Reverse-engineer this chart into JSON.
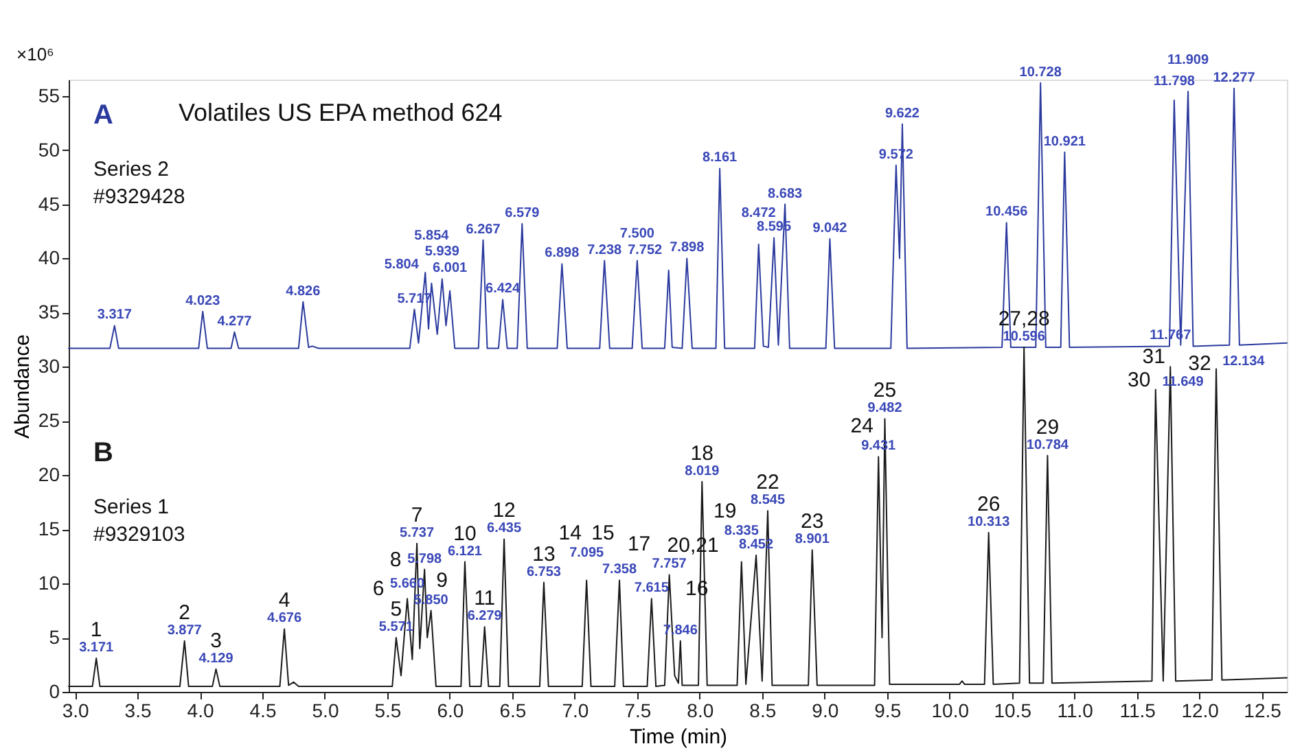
{
  "chart_data": {
    "type": "line",
    "title": "Volatiles US EPA method 624",
    "xlabel": "Time (min)",
    "ylabel": "Abundance",
    "xlim": [
      2.95,
      12.7
    ],
    "ylim": [
      0,
      56.5
    ],
    "xticks": [
      {
        "value": 3,
        "label": "3.0"
      },
      3.5,
      {
        "value": 4,
        "label": "4.0"
      },
      4.5,
      {
        "value": 5,
        "label": "5.0"
      },
      5.5,
      {
        "value": 6,
        "label": "6.0"
      },
      6.5,
      {
        "value": 7,
        "label": "7.0"
      },
      7.5,
      {
        "value": 8,
        "label": "8.0"
      },
      8.5,
      {
        "value": 9,
        "label": "9.0"
      },
      9.5,
      {
        "value": 10,
        "label": "10.0"
      },
      10.5,
      {
        "value": 11,
        "label": "11.0"
      },
      11.5,
      {
        "value": 12,
        "label": "12.0"
      },
      12.5
    ],
    "yticks": [
      0,
      5,
      10,
      15,
      20,
      25,
      30,
      35,
      40,
      45,
      50,
      55
    ],
    "grid": false,
    "legend": false,
    "marker": "none",
    "line_style": "solid",
    "series": [
      {
        "name": "A",
        "color": "#2b3a9e",
        "x": [
          2.95,
          3.28,
          3.317,
          3.35,
          3.99,
          4.023,
          4.06,
          4.25,
          4.277,
          4.31,
          4.79,
          4.826,
          4.87,
          4.9,
          4.95,
          5.68,
          5.717,
          5.75,
          5.804,
          5.83,
          5.854,
          5.9,
          5.939,
          5.97,
          6.001,
          6.04,
          6.23,
          6.267,
          6.3,
          6.39,
          6.424,
          6.46,
          6.54,
          6.579,
          6.62,
          6.86,
          6.898,
          6.94,
          7.2,
          7.238,
          7.28,
          7.46,
          7.5,
          7.54,
          7.72,
          7.752,
          7.78,
          7.86,
          7.898,
          7.94,
          8.13,
          8.161,
          8.2,
          8.44,
          8.472,
          8.51,
          8.55,
          8.595,
          8.63,
          8.683,
          8.72,
          9.01,
          9.042,
          9.08,
          9.53,
          9.572,
          9.6,
          9.622,
          9.66,
          10.42,
          10.456,
          10.49,
          10.69,
          10.728,
          10.77,
          10.89,
          10.921,
          10.96,
          11.76,
          11.798,
          11.85,
          11.909,
          11.95,
          12.24,
          12.277,
          12.32,
          12.7
        ],
        "values": [
          31.7,
          31.7,
          33.8,
          31.7,
          31.7,
          35.1,
          31.7,
          31.7,
          33.2,
          31.7,
          31.7,
          36.0,
          31.8,
          31.9,
          31.7,
          31.7,
          35.3,
          32.2,
          38.7,
          33.5,
          37.7,
          33.0,
          38.1,
          33.8,
          37.0,
          31.7,
          31.7,
          41.7,
          31.7,
          31.7,
          36.2,
          31.7,
          31.7,
          43.2,
          31.7,
          31.7,
          39.5,
          31.7,
          31.7,
          39.8,
          31.7,
          31.7,
          39.8,
          31.7,
          31.7,
          38.9,
          31.8,
          31.7,
          40.0,
          31.7,
          31.7,
          48.3,
          31.7,
          31.7,
          41.3,
          31.9,
          31.8,
          41.9,
          32.0,
          45.0,
          31.7,
          31.7,
          41.8,
          31.7,
          31.7,
          48.6,
          40.0,
          52.4,
          31.7,
          31.8,
          43.3,
          31.8,
          31.8,
          56.2,
          31.8,
          31.8,
          49.8,
          31.8,
          31.9,
          54.6,
          32.0,
          55.4,
          31.9,
          32.0,
          55.7,
          32.0,
          32.2
        ]
      },
      {
        "name": "B",
        "color": "#1a1a1a",
        "x": [
          2.95,
          3.14,
          3.171,
          3.2,
          3.84,
          3.877,
          3.91,
          4.1,
          4.129,
          4.16,
          4.64,
          4.676,
          4.71,
          4.75,
          4.79,
          5.54,
          5.571,
          5.61,
          5.66,
          5.7,
          5.737,
          5.76,
          5.798,
          5.82,
          5.85,
          5.89,
          6.09,
          6.121,
          6.16,
          6.25,
          6.279,
          6.31,
          6.4,
          6.435,
          6.47,
          6.72,
          6.753,
          6.79,
          7.06,
          7.095,
          7.13,
          7.32,
          7.358,
          7.39,
          7.58,
          7.615,
          7.65,
          7.72,
          7.757,
          7.8,
          7.83,
          7.846,
          7.86,
          7.99,
          8.019,
          8.06,
          8.3,
          8.335,
          8.37,
          8.452,
          8.5,
          8.545,
          8.58,
          8.87,
          8.901,
          8.94,
          9.4,
          9.431,
          9.46,
          9.482,
          9.52,
          10.08,
          10.1,
          10.12,
          10.28,
          10.313,
          10.35,
          10.56,
          10.596,
          10.64,
          10.75,
          10.784,
          10.82,
          11.62,
          11.649,
          11.71,
          11.767,
          11.81,
          12.1,
          12.134,
          12.18,
          12.7
        ],
        "values": [
          0.5,
          0.5,
          3.1,
          0.5,
          0.5,
          4.7,
          0.5,
          0.5,
          2.1,
          0.5,
          0.5,
          5.8,
          0.6,
          0.9,
          0.5,
          0.5,
          5.0,
          1.5,
          8.6,
          3.0,
          13.7,
          4.0,
          11.3,
          5.0,
          7.5,
          0.5,
          0.5,
          12.0,
          0.5,
          0.5,
          6.0,
          0.5,
          0.5,
          14.1,
          0.5,
          0.5,
          10.1,
          0.5,
          0.5,
          10.3,
          0.5,
          0.5,
          10.3,
          0.5,
          0.5,
          8.6,
          0.5,
          0.6,
          10.8,
          1.5,
          0.8,
          4.7,
          0.6,
          0.6,
          19.4,
          0.6,
          0.6,
          12.0,
          0.7,
          12.6,
          1.0,
          16.7,
          0.6,
          0.6,
          13.1,
          0.6,
          0.6,
          21.7,
          5.0,
          25.2,
          0.7,
          0.7,
          1.0,
          0.7,
          0.7,
          14.7,
          0.7,
          0.8,
          31.8,
          0.8,
          0.8,
          21.8,
          0.8,
          1.0,
          27.9,
          1.0,
          30.0,
          1.0,
          1.1,
          29.8,
          1.1,
          1.3
        ]
      }
    ],
    "annotations": [
      "×10⁶",
      "Series 2",
      "#9329428",
      "Series 1",
      "#9329103",
      {
        "text": "3.317",
        "x": 3.317,
        "y": 33.8
      },
      {
        "text": "4.023",
        "x": 4.023,
        "y": 35.1
      },
      {
        "text": "4.277",
        "x": 4.277,
        "y": 33.2
      },
      {
        "text": "4.826",
        "x": 4.826,
        "y": 36.0
      },
      {
        "text": "5.717",
        "x": 5.717,
        "y": 35.3
      },
      {
        "text": "5.804",
        "x": 5.804,
        "y": 38.7
      },
      {
        "text": "5.854",
        "x": 5.854,
        "y": 37.7
      },
      {
        "text": "5.939",
        "x": 5.939,
        "y": 38.1
      },
      {
        "text": "6.001",
        "x": 6.001,
        "y": 37.0
      },
      {
        "text": "6.267",
        "x": 6.267,
        "y": 41.7
      },
      {
        "text": "6.424",
        "x": 6.424,
        "y": 36.2
      },
      {
        "text": "6.579",
        "x": 6.579,
        "y": 43.2
      },
      {
        "text": "6.898",
        "x": 6.898,
        "y": 39.5
      },
      {
        "text": "7.238",
        "x": 7.238,
        "y": 39.8
      },
      {
        "text": "7.500",
        "x": 7.5,
        "y": 39.8
      },
      {
        "text": "7.752",
        "x": 7.752,
        "y": 38.9
      },
      {
        "text": "7.898",
        "x": 7.898,
        "y": 40.0
      },
      {
        "text": "8.161",
        "x": 8.161,
        "y": 48.3
      },
      {
        "text": "8.472",
        "x": 8.472,
        "y": 41.3
      },
      {
        "text": "8.595",
        "x": 8.595,
        "y": 41.9
      },
      {
        "text": "8.683",
        "x": 8.683,
        "y": 45.0
      },
      {
        "text": "9.042",
        "x": 9.042,
        "y": 41.8
      },
      {
        "text": "9.572",
        "x": 9.572,
        "y": 48.6
      },
      {
        "text": "9.622",
        "x": 9.622,
        "y": 52.4
      },
      {
        "text": "10.456",
        "x": 10.456,
        "y": 43.3
      },
      {
        "text": "10.728",
        "x": 10.728,
        "y": 56.2
      },
      {
        "text": "10.921",
        "x": 10.921,
        "y": 49.8
      },
      {
        "text": "11.798",
        "x": 11.798,
        "y": 54.6
      },
      {
        "text": "11.909",
        "x": 11.909,
        "y": 55.4
      },
      {
        "text": "12.277",
        "x": 12.277,
        "y": 55.7
      },
      {
        "text": "3.171",
        "x": 3.171,
        "y": 3.1
      },
      {
        "text": "3.877",
        "x": 3.877,
        "y": 4.7
      },
      {
        "text": "4.129",
        "x": 4.129,
        "y": 2.1
      },
      {
        "text": "4.676",
        "x": 4.676,
        "y": 5.8
      },
      {
        "text": "5.571",
        "x": 5.571,
        "y": 5.0
      },
      {
        "text": "5.660",
        "x": 5.66,
        "y": 8.6
      },
      {
        "text": "5.737",
        "x": 5.737,
        "y": 13.7
      },
      {
        "text": "5.798",
        "x": 5.798,
        "y": 11.3
      },
      {
        "text": "5.850",
        "x": 5.85,
        "y": 7.5
      },
      {
        "text": "6.121",
        "x": 6.121,
        "y": 12.0
      },
      {
        "text": "6.279",
        "x": 6.279,
        "y": 6.0
      },
      {
        "text": "6.435",
        "x": 6.435,
        "y": 14.1
      },
      {
        "text": "6.753",
        "x": 6.753,
        "y": 10.1
      },
      {
        "text": "7.095",
        "x": 7.095,
        "y": 10.3
      },
      {
        "text": "7.358",
        "x": 7.358,
        "y": 10.3
      },
      {
        "text": "7.615",
        "x": 7.615,
        "y": 8.6
      },
      {
        "text": "7.757",
        "x": 7.757,
        "y": 10.8
      },
      {
        "text": "7.846",
        "x": 7.846,
        "y": 4.7
      },
      {
        "text": "8.019",
        "x": 8.019,
        "y": 19.4
      },
      {
        "text": "8.335",
        "x": 8.335,
        "y": 12.0
      },
      {
        "text": "8.452",
        "x": 8.452,
        "y": 12.6
      },
      {
        "text": "8.545",
        "x": 8.545,
        "y": 16.7
      },
      {
        "text": "8.901",
        "x": 8.901,
        "y": 13.1
      },
      {
        "text": "9.431",
        "x": 9.431,
        "y": 21.7
      },
      {
        "text": "9.482",
        "x": 9.482,
        "y": 25.2
      },
      {
        "text": "10.313",
        "x": 10.313,
        "y": 14.7
      },
      {
        "text": "10.596",
        "x": 10.596,
        "y": 31.8
      },
      {
        "text": "10.784",
        "x": 10.784,
        "y": 21.8
      },
      {
        "text": "11.649",
        "x": 11.649,
        "y": 27.9
      },
      {
        "text": "11.767",
        "x": 11.767,
        "y": 30.0
      },
      {
        "text": "12.134",
        "x": 12.134,
        "y": 29.8
      },
      {
        "text": "1",
        "x": 3.171,
        "y": 3.1
      },
      {
        "text": "2",
        "x": 3.877,
        "y": 4.7
      },
      {
        "text": "3",
        "x": 4.129,
        "y": 2.1
      },
      {
        "text": "4",
        "x": 4.676,
        "y": 5.8
      },
      {
        "text": "5",
        "x": 5.571,
        "y": 5.0
      },
      {
        "text": "6",
        "x": 5.66,
        "y": 8.6
      },
      {
        "text": "7",
        "x": 5.737,
        "y": 13.7
      },
      {
        "text": "8",
        "x": 5.798,
        "y": 11.3
      },
      {
        "text": "9",
        "x": 5.85,
        "y": 7.5
      },
      {
        "text": "10",
        "x": 6.121,
        "y": 12.0
      },
      {
        "text": "11",
        "x": 6.279,
        "y": 6.0
      },
      {
        "text": "12",
        "x": 6.435,
        "y": 14.1
      },
      {
        "text": "13",
        "x": 6.753,
        "y": 10.1
      },
      {
        "text": "14",
        "x": 7.095,
        "y": 10.3
      },
      {
        "text": "15",
        "x": 7.358,
        "y": 10.3
      },
      {
        "text": "16",
        "x": 7.615,
        "y": 8.6
      },
      {
        "text": "17",
        "x": 7.757,
        "y": 10.8
      },
      {
        "text": "18",
        "x": 8.019,
        "y": 19.4
      },
      {
        "text": "19",
        "x": 8.335,
        "y": 12.0
      },
      {
        "text": "20,21",
        "x": 8.452,
        "y": 12.6
      },
      {
        "text": "22",
        "x": 8.545,
        "y": 16.7
      },
      {
        "text": "23",
        "x": 8.901,
        "y": 13.1
      },
      {
        "text": "24",
        "x": 9.431,
        "y": 21.7
      },
      {
        "text": "25",
        "x": 9.482,
        "y": 25.2
      },
      {
        "text": "26",
        "x": 10.313,
        "y": 14.7
      },
      {
        "text": "27,28",
        "x": 10.596,
        "y": 31.8
      },
      {
        "text": "29",
        "x": 10.784,
        "y": 21.8
      },
      {
        "text": "30",
        "x": 11.649,
        "y": 27.9
      },
      {
        "text": "31",
        "x": 11.767,
        "y": 30.0
      },
      {
        "text": "32",
        "x": 12.134,
        "y": 29.8
      }
    ]
  }
}
